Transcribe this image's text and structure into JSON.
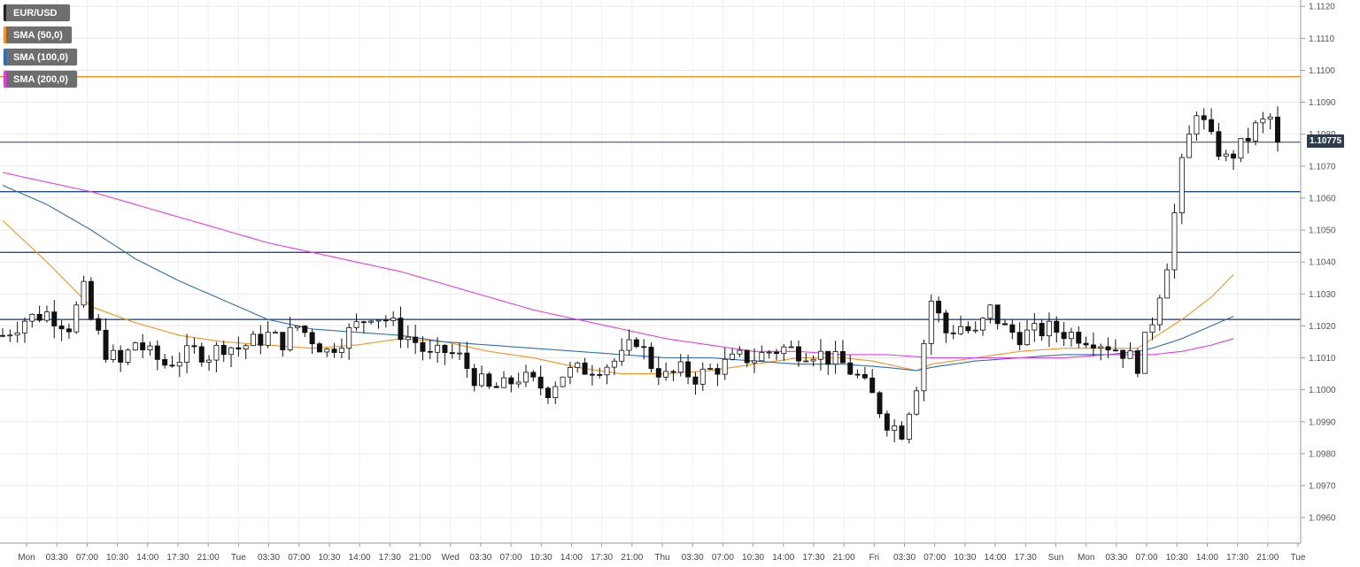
{
  "chart_data": {
    "type": "candlestick",
    "symbol": "EUR/USD",
    "legend": [
      {
        "label": "EUR/USD",
        "color": "#222222"
      },
      {
        "label": "SMA (50,0)",
        "color": "#f7931e"
      },
      {
        "label": "SMA (100,0)",
        "color": "#2a6fb5"
      },
      {
        "label": "SMA (200,0)",
        "color": "#e83be3"
      }
    ],
    "ylim": [
      1.0952,
      1.1122
    ],
    "yticks": [
      "1.0960",
      "1.0970",
      "1.0980",
      "1.0990",
      "1.1000",
      "1.1010",
      "1.1020",
      "1.1030",
      "1.1040",
      "1.1050",
      "1.1060",
      "1.1070",
      "1.1080",
      "1.1090",
      "1.1100",
      "1.1110",
      "1.1120"
    ],
    "xticks": [
      "Mon",
      "03:30",
      "07:00",
      "10:30",
      "14:00",
      "17:30",
      "21:00",
      "Tue",
      "03:30",
      "07:00",
      "10:30",
      "14:00",
      "17:30",
      "21:00",
      "Wed",
      "03:30",
      "07:00",
      "10:30",
      "14:00",
      "17:30",
      "21:00",
      "Thu",
      "03:30",
      "07:00",
      "10:30",
      "14:00",
      "17:30",
      "21:00",
      "Fri",
      "03:30",
      "07:00",
      "10:30",
      "14:00",
      "17:30",
      "Sun",
      "Mon",
      "03:30",
      "07:00",
      "10:30",
      "14:00",
      "17:30",
      "21:00",
      "Tue"
    ],
    "current_price": "1.10775",
    "current_price_value": 1.10775,
    "horizontal_levels": [
      {
        "value": 1.1098,
        "color": "#f7931e"
      },
      {
        "value": 1.10775,
        "color": "#2f3c4a"
      },
      {
        "value": 1.1062,
        "color": "#1f4e8c"
      },
      {
        "value": 1.1043,
        "color": "#1f4e8c"
      },
      {
        "value": 1.1022,
        "color": "#1f4e8c"
      }
    ],
    "price_path": [
      [
        0,
        1.1017
      ],
      [
        3,
        1.1022
      ],
      [
        6,
        1.1024
      ],
      [
        9,
        1.102
      ],
      [
        11,
        1.1031
      ],
      [
        12,
        1.1022
      ],
      [
        14,
        1.1012
      ],
      [
        16,
        1.1008
      ],
      [
        18,
        1.1015
      ],
      [
        20,
        1.1011
      ],
      [
        22,
        1.1008
      ],
      [
        24,
        1.101
      ],
      [
        26,
        1.1012
      ],
      [
        28,
        1.1011
      ],
      [
        30,
        1.1014
      ],
      [
        32,
        1.1013
      ],
      [
        34,
        1.1015
      ],
      [
        36,
        1.1017
      ],
      [
        38,
        1.1015
      ],
      [
        40,
        1.102
      ],
      [
        42,
        1.1016
      ],
      [
        44,
        1.1012
      ],
      [
        46,
        1.1016
      ],
      [
        48,
        1.102
      ],
      [
        50,
        1.1024
      ],
      [
        52,
        1.1022
      ],
      [
        54,
        1.1018
      ],
      [
        56,
        1.1015
      ],
      [
        58,
        1.101
      ],
      [
        60,
        1.1012
      ],
      [
        62,
        1.101
      ],
      [
        64,
        1.1004
      ],
      [
        66,
        1.1
      ],
      [
        68,
        1.1001
      ],
      [
        70,
        1.1004
      ],
      [
        72,
        1.1002
      ],
      [
        74,
        1.1
      ],
      [
        76,
        1.1005
      ],
      [
        78,
        1.1006
      ],
      [
        80,
        1.1007
      ],
      [
        82,
        1.1008
      ],
      [
        84,
        1.101
      ],
      [
        86,
        1.1016
      ],
      [
        88,
        1.1008
      ],
      [
        90,
        1.1004
      ],
      [
        92,
        1.1006
      ],
      [
        94,
        1.1004
      ],
      [
        96,
        1.1006
      ],
      [
        98,
        1.1008
      ],
      [
        100,
        1.101
      ],
      [
        102,
        1.101
      ],
      [
        104,
        1.1012
      ],
      [
        106,
        1.1013
      ],
      [
        108,
        1.1012
      ],
      [
        110,
        1.1012
      ],
      [
        112,
        1.101
      ],
      [
        114,
        1.1008
      ],
      [
        116,
        1.1004
      ],
      [
        118,
        1.0998
      ],
      [
        120,
        1.099
      ],
      [
        122,
        1.0987
      ],
      [
        124,
        1.1002
      ],
      [
        126,
        1.1028
      ],
      [
        128,
        1.1018
      ],
      [
        130,
        1.102
      ],
      [
        132,
        1.1017
      ],
      [
        134,
        1.1025
      ],
      [
        136,
        1.1019
      ],
      [
        138,
        1.1017
      ],
      [
        140,
        1.1018
      ],
      [
        142,
        1.1019
      ],
      [
        144,
        1.1018
      ],
      [
        146,
        1.1017
      ],
      [
        148,
        1.1016
      ],
      [
        150,
        1.1014
      ],
      [
        152,
        1.1012
      ],
      [
        154,
        1.1008
      ],
      [
        156,
        1.1022
      ],
      [
        158,
        1.104
      ],
      [
        160,
        1.107
      ],
      [
        162,
        1.1088
      ],
      [
        164,
        1.1078
      ],
      [
        166,
        1.1072
      ],
      [
        168,
        1.1076
      ],
      [
        170,
        1.1082
      ],
      [
        172,
        1.1085
      ],
      [
        173,
        1.10775
      ]
    ],
    "sma50": [
      [
        0,
        1.1053
      ],
      [
        6,
        1.104
      ],
      [
        12,
        1.1026
      ],
      [
        18,
        1.1021
      ],
      [
        24,
        1.1017
      ],
      [
        30,
        1.1015
      ],
      [
        36,
        1.1014
      ],
      [
        42,
        1.1013
      ],
      [
        48,
        1.1014
      ],
      [
        54,
        1.1016
      ],
      [
        60,
        1.1015
      ],
      [
        66,
        1.1012
      ],
      [
        72,
        1.101
      ],
      [
        78,
        1.1007
      ],
      [
        84,
        1.1005
      ],
      [
        90,
        1.1005
      ],
      [
        96,
        1.1006
      ],
      [
        102,
        1.1008
      ],
      [
        108,
        1.101
      ],
      [
        114,
        1.101
      ],
      [
        118,
        1.1009
      ],
      [
        122,
        1.1007
      ],
      [
        124,
        1.1006
      ],
      [
        126,
        1.1008
      ],
      [
        132,
        1.101
      ],
      [
        138,
        1.1012
      ],
      [
        144,
        1.1013
      ],
      [
        150,
        1.1013
      ],
      [
        154,
        1.1013
      ],
      [
        156,
        1.1016
      ],
      [
        160,
        1.1022
      ],
      [
        164,
        1.1029
      ],
      [
        167,
        1.1036
      ]
    ],
    "sma100": [
      [
        0,
        1.1064
      ],
      [
        6,
        1.1058
      ],
      [
        12,
        1.105
      ],
      [
        18,
        1.1041
      ],
      [
        24,
        1.1034
      ],
      [
        30,
        1.1028
      ],
      [
        36,
        1.1022
      ],
      [
        42,
        1.1019
      ],
      [
        48,
        1.1018
      ],
      [
        54,
        1.1017
      ],
      [
        60,
        1.1015
      ],
      [
        66,
        1.1014
      ],
      [
        72,
        1.1013
      ],
      [
        78,
        1.1012
      ],
      [
        84,
        1.1011
      ],
      [
        90,
        1.101
      ],
      [
        96,
        1.101
      ],
      [
        102,
        1.1009
      ],
      [
        108,
        1.1008
      ],
      [
        114,
        1.1008
      ],
      [
        120,
        1.1007
      ],
      [
        124,
        1.1006
      ],
      [
        126,
        1.1007
      ],
      [
        132,
        1.1009
      ],
      [
        138,
        1.101
      ],
      [
        144,
        1.1011
      ],
      [
        150,
        1.1011
      ],
      [
        154,
        1.1012
      ],
      [
        156,
        1.1013
      ],
      [
        160,
        1.1016
      ],
      [
        164,
        1.102
      ],
      [
        167,
        1.1023
      ]
    ],
    "sma200": [
      [
        0,
        1.1068
      ],
      [
        6,
        1.1065
      ],
      [
        12,
        1.1062
      ],
      [
        18,
        1.1058
      ],
      [
        24,
        1.1054
      ],
      [
        30,
        1.105
      ],
      [
        36,
        1.1046
      ],
      [
        42,
        1.1043
      ],
      [
        48,
        1.104
      ],
      [
        54,
        1.1037
      ],
      [
        60,
        1.1033
      ],
      [
        66,
        1.1029
      ],
      [
        72,
        1.1025
      ],
      [
        78,
        1.1022
      ],
      [
        84,
        1.1019
      ],
      [
        90,
        1.1016
      ],
      [
        96,
        1.1014
      ],
      [
        102,
        1.1012
      ],
      [
        108,
        1.1012
      ],
      [
        114,
        1.1011
      ],
      [
        120,
        1.1011
      ],
      [
        126,
        1.101
      ],
      [
        132,
        1.101
      ],
      [
        138,
        1.101
      ],
      [
        144,
        1.101
      ],
      [
        150,
        1.1011
      ],
      [
        156,
        1.1011
      ],
      [
        160,
        1.1012
      ],
      [
        164,
        1.1014
      ],
      [
        167,
        1.1016
      ]
    ]
  }
}
